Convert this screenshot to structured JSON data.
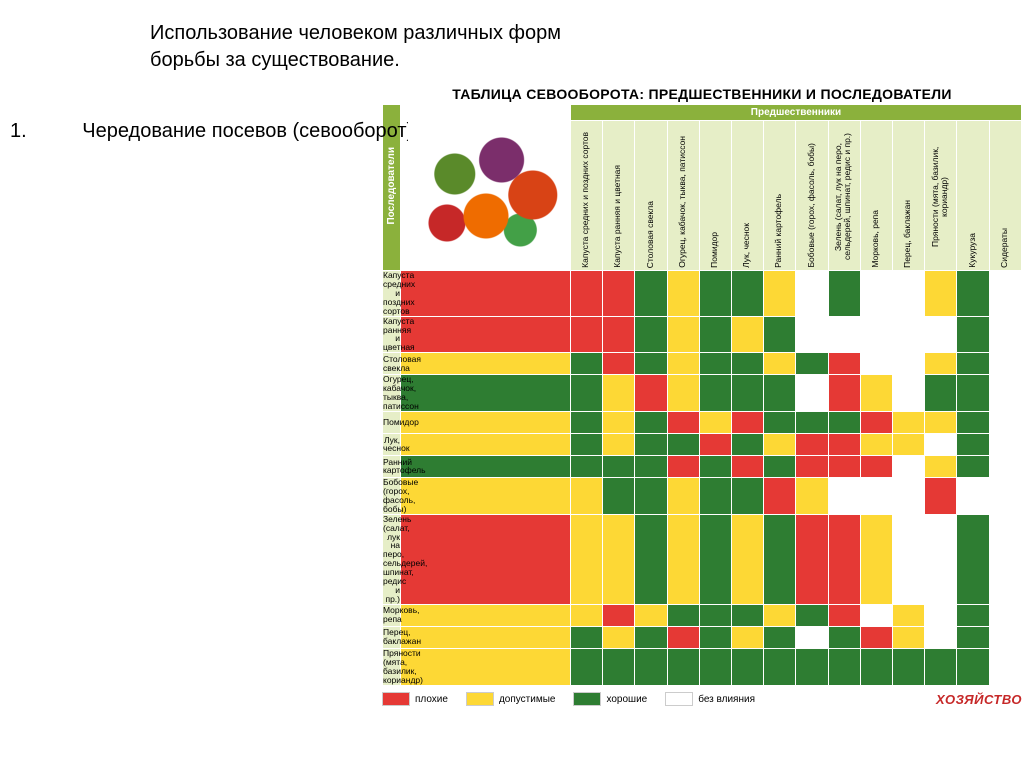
{
  "slide_title": "Использование человеком различных форм борьбы за существование.",
  "subtitle_num": "1.",
  "subtitle_text": "Чередование посевов (севооборот).",
  "table_title": "ТАБЛИЦА СЕВООБОРОТА: ПРЕДШЕСТВЕННИКИ И ПОСЛЕДОВАТЕЛИ",
  "pred_label": "Предшественники",
  "succ_label": "Последователи",
  "brand": "ХОЗЯЙСТВО",
  "legend": {
    "bad": "плохие",
    "ok": "допустимые",
    "good": "хорошие",
    "none": "без влияния"
  },
  "colors": {
    "R": "#e53935",
    "Y": "#fdd835",
    "G": "#2e7d32",
    "W": "#ffffff",
    "header_bg": "#8bb13c",
    "cell_bg": "#e6eec7"
  },
  "columns": [
    "Капуста средних и поздних сортов",
    "Капуста ранняя и цветная",
    "Столовая свекла",
    "Огурец, кабачок, тыква, патиссон",
    "Помидор",
    "Лук, чеснок",
    "Ранний картофель",
    "Бобовые (горох, фасоль, бобы)",
    "Зелень (салат, лук на перо, сельдерей, шпинат, редис и пр.)",
    "Морковь, репа",
    "Перец, баклажан",
    "Пряности (мята, базилик, кориандр)",
    "Кукуруза",
    "Сидераты"
  ],
  "rows": [
    {
      "label": "Капуста средних и поздних сортов",
      "cells": [
        "R",
        "R",
        "R",
        "G",
        "Y",
        "G",
        "G",
        "Y",
        "W",
        "G",
        "W",
        "W",
        "Y",
        "G"
      ]
    },
    {
      "label": "Капуста ранняя и цветная",
      "cells": [
        "R",
        "R",
        "R",
        "G",
        "Y",
        "G",
        "Y",
        "G",
        "W",
        "W",
        "W",
        "W",
        "W",
        "G"
      ]
    },
    {
      "label": "Столовая свекла",
      "cells": [
        "Y",
        "G",
        "R",
        "G",
        "Y",
        "G",
        "G",
        "Y",
        "G",
        "R",
        "W",
        "W",
        "Y",
        "G"
      ]
    },
    {
      "label": "Огурец, кабачок, тыква, патиссон",
      "cells": [
        "G",
        "G",
        "Y",
        "R",
        "Y",
        "G",
        "G",
        "G",
        "W",
        "R",
        "Y",
        "W",
        "G",
        "G"
      ]
    },
    {
      "label": "Помидор",
      "cells": [
        "Y",
        "G",
        "Y",
        "G",
        "R",
        "Y",
        "R",
        "G",
        "G",
        "G",
        "R",
        "Y",
        "Y",
        "G"
      ]
    },
    {
      "label": "Лук, чеснок",
      "cells": [
        "Y",
        "G",
        "Y",
        "G",
        "G",
        "R",
        "G",
        "Y",
        "R",
        "R",
        "Y",
        "Y",
        "W",
        "G"
      ]
    },
    {
      "label": "Ранний картофель",
      "cells": [
        "G",
        "G",
        "G",
        "G",
        "R",
        "G",
        "R",
        "G",
        "R",
        "R",
        "R",
        "W",
        "Y",
        "G"
      ]
    },
    {
      "label": "Бобовые (горох, фасоль, бобы)",
      "cells": [
        "Y",
        "Y",
        "G",
        "G",
        "Y",
        "G",
        "G",
        "R",
        "Y",
        "W",
        "W",
        "W",
        "R",
        "W"
      ]
    },
    {
      "label": "Зелень (салат, лук на перо, сельдерей, шпинат, редис и пр.)",
      "cells": [
        "R",
        "Y",
        "Y",
        "G",
        "Y",
        "G",
        "Y",
        "G",
        "R",
        "R",
        "Y",
        "W",
        "W",
        "G"
      ]
    },
    {
      "label": "Морковь, репа",
      "cells": [
        "Y",
        "Y",
        "R",
        "Y",
        "G",
        "G",
        "G",
        "Y",
        "G",
        "R",
        "W",
        "Y",
        "W",
        "G"
      ]
    },
    {
      "label": "Перец, баклажан",
      "cells": [
        "Y",
        "G",
        "Y",
        "G",
        "R",
        "G",
        "Y",
        "G",
        "W",
        "G",
        "R",
        "Y",
        "W",
        "G"
      ]
    },
    {
      "label": "Пряности (мята, базилик, кориандр)",
      "cells": [
        "Y",
        "G",
        "G",
        "G",
        "G",
        "G",
        "G",
        "G",
        "G",
        "G",
        "G",
        "G",
        "G",
        "G"
      ]
    }
  ]
}
